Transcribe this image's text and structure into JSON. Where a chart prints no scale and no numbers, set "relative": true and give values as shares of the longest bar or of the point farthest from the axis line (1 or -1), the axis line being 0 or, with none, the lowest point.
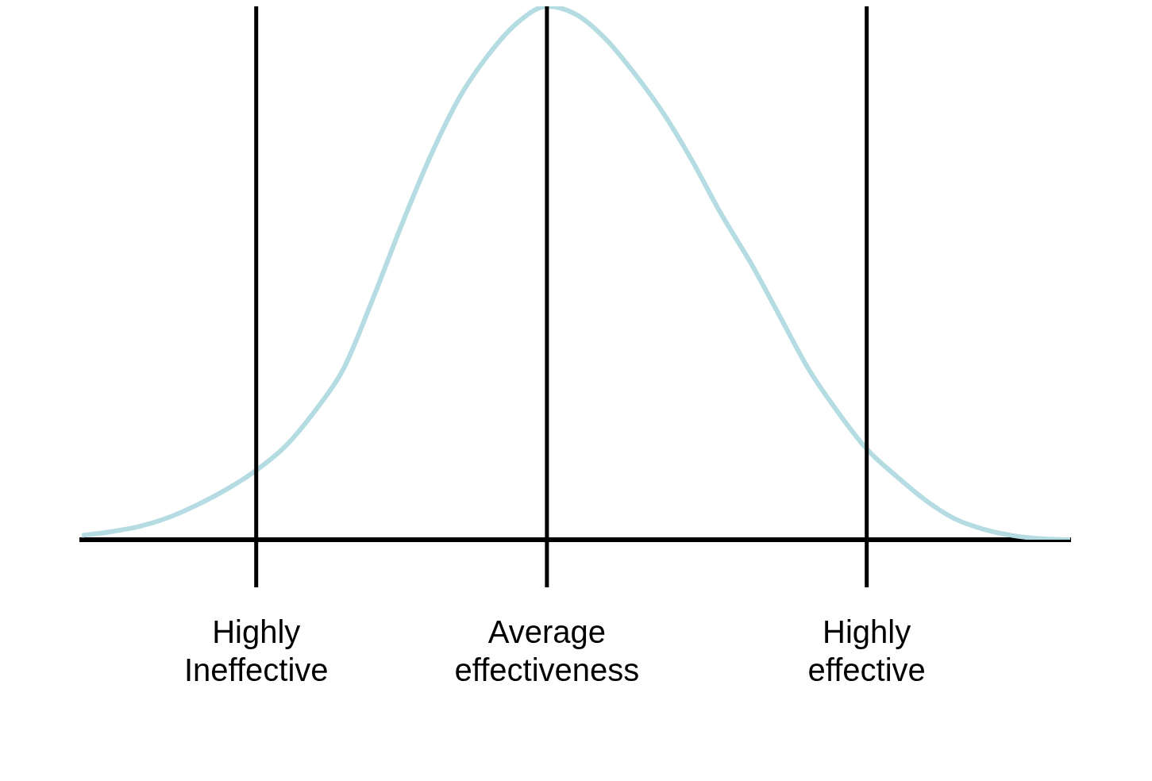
{
  "chart_data": {
    "type": "line",
    "relative": true,
    "categories": [
      null,
      null,
      null,
      null,
      null,
      null,
      "Highly Ineffective",
      null,
      null,
      null,
      null,
      null,
      null,
      null,
      null,
      null,
      "Average effectiveness",
      null,
      null,
      null,
      null,
      null,
      null,
      null,
      null,
      null,
      null,
      "Highly effective",
      null,
      null,
      null,
      null,
      null,
      null,
      null
    ],
    "series": [
      {
        "color": "#b4dce2",
        "values": [
          0.008,
          0.015,
          0.025,
          0.042,
          0.066,
          0.095,
          0.13,
          0.175,
          0.24,
          0.32,
          0.45,
          0.59,
          0.72,
          0.83,
          0.91,
          0.97,
          1,
          0.985,
          0.94,
          0.875,
          0.8,
          0.71,
          0.61,
          0.52,
          0.42,
          0.32,
          0.24,
          0.17,
          0.12,
          0.075,
          0.04,
          0.02,
          0.008,
          0.002,
          0
        ]
      }
    ],
    "ref_lines": [
      {
        "axis": "x",
        "value": "Highly Ineffective",
        "color": "#000000"
      },
      {
        "axis": "x",
        "value": "Average effectiveness",
        "color": "#000000"
      },
      {
        "axis": "x",
        "value": "Highly effective",
        "color": "#000000"
      }
    ],
    "grid": false,
    "legend": false,
    "marker": "none",
    "line_style": "solid"
  }
}
